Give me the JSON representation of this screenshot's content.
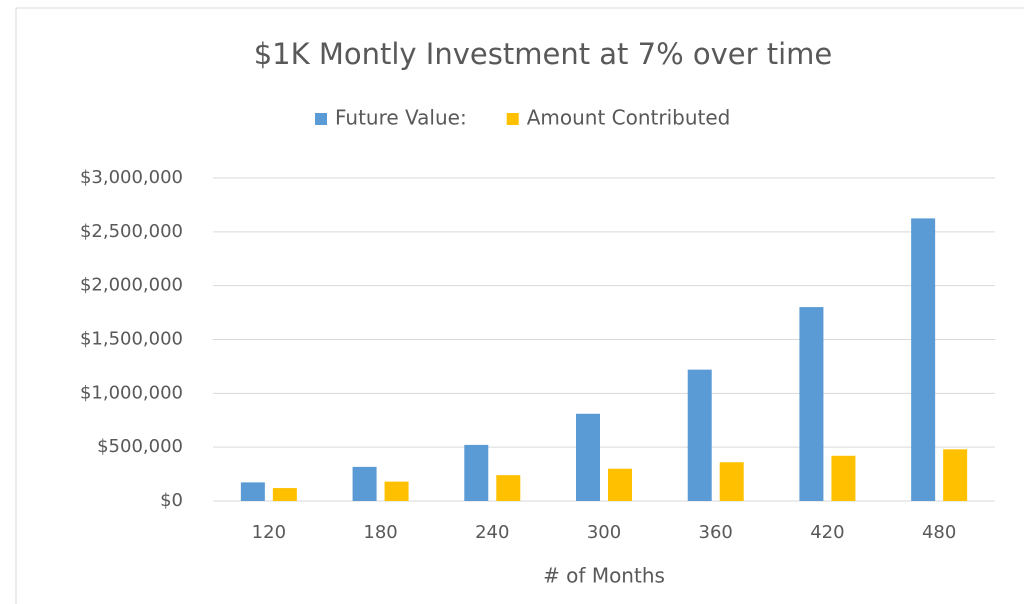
{
  "chart_data": {
    "type": "bar",
    "title": "$1K Montly Investment at 7% over time",
    "x_label": "# of Months",
    "categories": [
      "120",
      "180",
      "240",
      "300",
      "360",
      "420",
      "480"
    ],
    "series": [
      {
        "name": "Future Value:",
        "color": "#5b9bd5",
        "values": [
          173085,
          316962,
          520927,
          810071,
          1219971,
          1801055,
          2624813
        ]
      },
      {
        "name": "Amount Contributed",
        "color": "#ffc000",
        "values": [
          120000,
          180000,
          240000,
          300000,
          360000,
          420000,
          480000
        ]
      }
    ],
    "ylim": [
      0,
      3000000
    ],
    "yticks": [
      {
        "value": 0,
        "label": "$0"
      },
      {
        "value": 500000,
        "label": "$500,000"
      },
      {
        "value": 1000000,
        "label": "$1,000,000"
      },
      {
        "value": 1500000,
        "label": "$1,500,000"
      },
      {
        "value": 2000000,
        "label": "$2,000,000"
      },
      {
        "value": 2500000,
        "label": "$2,500,000"
      },
      {
        "value": 3000000,
        "label": "$3,000,000"
      }
    ],
    "grid": true,
    "legend": "top"
  }
}
